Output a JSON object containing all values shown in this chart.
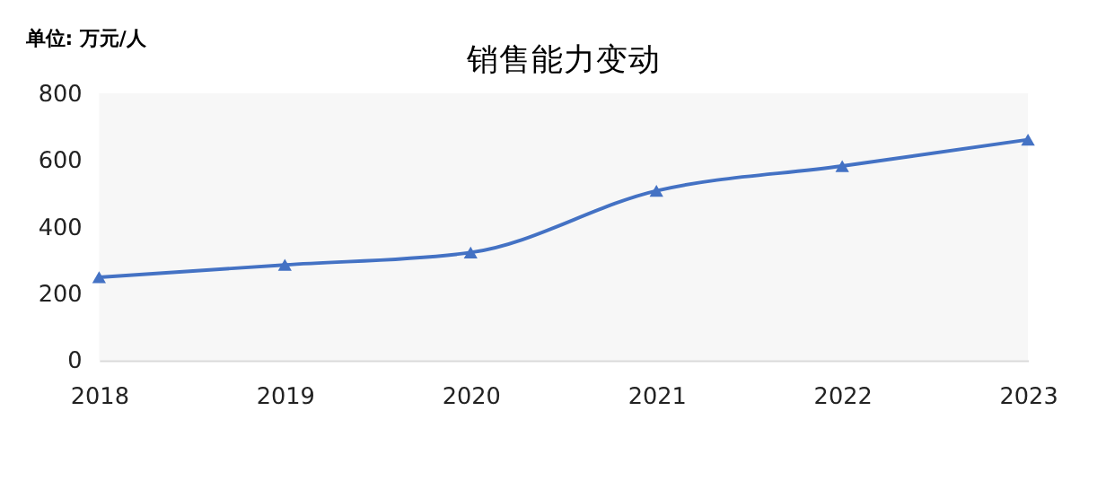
{
  "chart_data": {
    "type": "line",
    "title": "销售能力变动",
    "ylabel": "单位: 万元/人",
    "categories": [
      "2018",
      "2019",
      "2020",
      "2021",
      "2022",
      "2023"
    ],
    "series": [
      {
        "color": "#4472c4",
        "values": [
          249,
          286,
          323,
          508,
          582,
          661
        ]
      }
    ],
    "ylim": [
      0,
      800
    ],
    "yticks": [
      0,
      200,
      400,
      600,
      800
    ],
    "marker": "triangle",
    "line_style": "solid",
    "grid": false
  }
}
